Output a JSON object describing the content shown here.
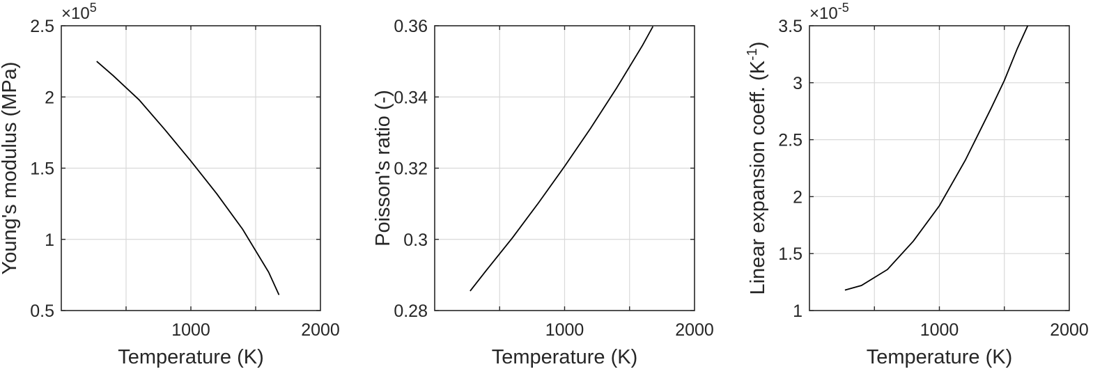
{
  "chart_data": [
    {
      "type": "line",
      "xlabel": "Temperature (K)",
      "ylabel": "Young's modulus (MPa)",
      "y_exponent_label": "×10",
      "y_exponent_power": "5",
      "xlim": [
        0,
        2000
      ],
      "ylim": [
        0.5,
        2.5
      ],
      "xticks": [
        1000,
        2000
      ],
      "xtick_labels": [
        "1000",
        "2000"
      ],
      "yticks": [
        0.5,
        1,
        1.5,
        2,
        2.5
      ],
      "ytick_labels": [
        "0.5",
        "1",
        "1.5",
        "2",
        "2.5"
      ],
      "xgrid": [
        500,
        1000,
        1500
      ],
      "ygrid": [
        1,
        1.5,
        2
      ],
      "grid": true,
      "series": [
        {
          "x": [
            273,
            400,
            600,
            800,
            1000,
            1200,
            1400,
            1600,
            1680
          ],
          "values": [
            2.25,
            2.15,
            1.98,
            1.77,
            1.55,
            1.32,
            1.07,
            0.77,
            0.61
          ]
        }
      ]
    },
    {
      "type": "line",
      "xlabel": "Temperature (K)",
      "ylabel": "Poisson's ratio (-)",
      "xlim": [
        0,
        2000
      ],
      "ylim": [
        0.28,
        0.36
      ],
      "xticks": [
        1000,
        2000
      ],
      "xtick_labels": [
        "1000",
        "2000"
      ],
      "yticks": [
        0.28,
        0.3,
        0.32,
        0.34,
        0.36
      ],
      "ytick_labels": [
        "0.28",
        "0.3",
        "0.32",
        "0.34",
        "0.36"
      ],
      "xgrid": [
        500,
        1000,
        1500
      ],
      "ygrid": [
        0.3,
        0.32,
        0.34
      ],
      "grid": true,
      "series": [
        {
          "x": [
            273,
            400,
            600,
            800,
            1000,
            1200,
            1400,
            1600,
            1680
          ],
          "values": [
            0.2855,
            0.2914,
            0.3005,
            0.3103,
            0.3205,
            0.3312,
            0.3425,
            0.3545,
            0.3598
          ]
        }
      ]
    },
    {
      "type": "line",
      "xlabel": "Temperature (K)",
      "ylabel": "Linear expansion coeff. (K",
      "ylabel_superscript": "-1",
      "ylabel_suffix": ")",
      "y_exponent_label": "×10",
      "y_exponent_power": "-5",
      "xlim": [
        0,
        2000
      ],
      "ylim": [
        1,
        3.5
      ],
      "xticks": [
        1000,
        2000
      ],
      "xtick_labels": [
        "1000",
        "2000"
      ],
      "yticks": [
        1,
        1.5,
        2,
        2.5,
        3,
        3.5
      ],
      "ytick_labels": [
        "1",
        "1.5",
        "2",
        "2.5",
        "3",
        "3.5"
      ],
      "xgrid": [
        500,
        1000,
        1500
      ],
      "ygrid": [
        1.5,
        2,
        2.5,
        3
      ],
      "grid": true,
      "series": [
        {
          "x": [
            273,
            400,
            600,
            800,
            1000,
            1200,
            1400,
            1500,
            1600,
            1680
          ],
          "values": [
            1.18,
            1.22,
            1.36,
            1.61,
            1.92,
            2.32,
            2.78,
            3.02,
            3.3,
            3.5
          ]
        }
      ]
    }
  ]
}
